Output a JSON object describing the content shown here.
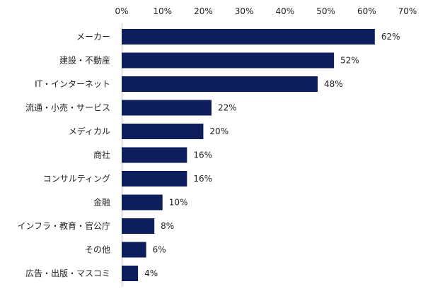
{
  "chart_data": {
    "type": "bar",
    "orientation": "horizontal",
    "categories": [
      "メーカー",
      "建設・不動産",
      "IT・インターネット",
      "流通・小売・サービス",
      "メディカル",
      "商社",
      "コンサルティング",
      "金融",
      "インフラ・教育・官公庁",
      "その他",
      "広告・出版・マスコミ"
    ],
    "values": [
      62,
      52,
      48,
      22,
      20,
      16,
      16,
      10,
      8,
      6,
      4
    ],
    "value_labels": [
      "62%",
      "52%",
      "48%",
      "22%",
      "20%",
      "16%",
      "16%",
      "10%",
      "8%",
      "6%",
      "4%"
    ],
    "xlim": [
      0,
      70
    ],
    "x_ticks": [
      0,
      10,
      20,
      30,
      40,
      50,
      60,
      70
    ],
    "x_tick_labels": [
      "0%",
      "10%",
      "20%",
      "30%",
      "40%",
      "50%",
      "60%",
      "70%"
    ],
    "x_axis_position": "top",
    "grid": false,
    "bar_color": "#0e1e5c",
    "title": "",
    "xlabel": "",
    "ylabel": ""
  }
}
